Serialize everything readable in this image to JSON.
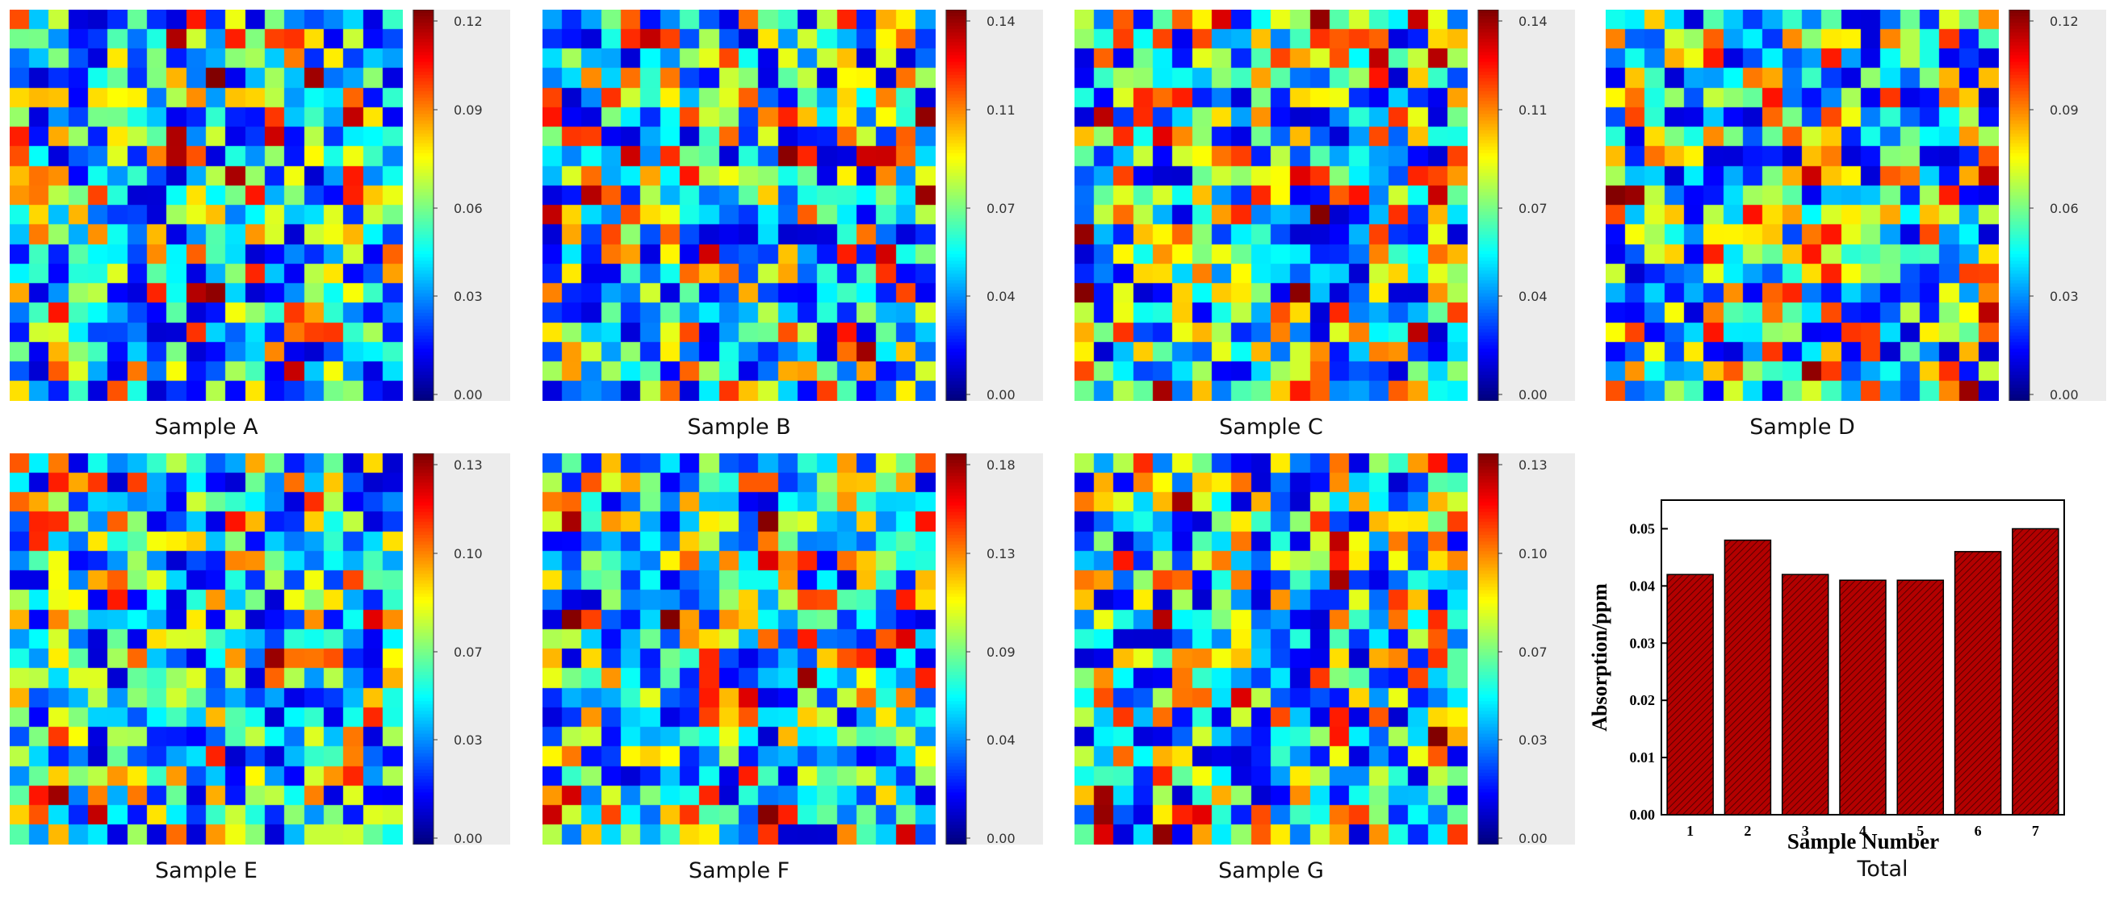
{
  "panels": [
    {
      "label": "Sample A",
      "seed": 11,
      "ticks": [
        "0.12",
        "0.09",
        "0.06",
        "0.03",
        "0.00"
      ]
    },
    {
      "label": "Sample B",
      "seed": 23,
      "ticks": [
        "0.14",
        "0.11",
        "0.07",
        "0.04",
        "0.00"
      ]
    },
    {
      "label": "Sample C",
      "seed": 37,
      "ticks": [
        "0.14",
        "0.11",
        "0.07",
        "0.04",
        "0.00"
      ]
    },
    {
      "label": "Sample D",
      "seed": 41,
      "ticks": [
        "0.12",
        "0.09",
        "0.06",
        "0.03",
        "0.00"
      ]
    },
    {
      "label": "Sample E",
      "seed": 53,
      "ticks": [
        "0.13",
        "0.10",
        "0.07",
        "0.03",
        "0.00"
      ]
    },
    {
      "label": "Sample F",
      "seed": 67,
      "ticks": [
        "0.18",
        "0.13",
        "0.09",
        "0.04",
        "0.00"
      ]
    },
    {
      "label": "Sample G",
      "seed": 79,
      "ticks": [
        "0.13",
        "0.10",
        "0.07",
        "0.03",
        "0.00"
      ]
    }
  ],
  "chart_data": [
    {
      "type": "heatmap",
      "title": "Sample A",
      "grid": [
        20,
        20
      ],
      "colormap": "jet",
      "range": [
        0.0,
        0.12
      ],
      "colorbar_ticks": [
        0.12,
        0.09,
        0.06,
        0.03,
        0.0
      ]
    },
    {
      "type": "heatmap",
      "title": "Sample B",
      "grid": [
        20,
        20
      ],
      "colormap": "jet",
      "range": [
        0.0,
        0.14
      ],
      "colorbar_ticks": [
        0.14,
        0.11,
        0.07,
        0.04,
        0.0
      ]
    },
    {
      "type": "heatmap",
      "title": "Sample C",
      "grid": [
        20,
        20
      ],
      "colormap": "jet",
      "range": [
        0.0,
        0.14
      ],
      "colorbar_ticks": [
        0.14,
        0.11,
        0.07,
        0.04,
        0.0
      ]
    },
    {
      "type": "heatmap",
      "title": "Sample D",
      "grid": [
        20,
        20
      ],
      "colormap": "jet",
      "range": [
        0.0,
        0.12
      ],
      "colorbar_ticks": [
        0.12,
        0.09,
        0.06,
        0.03,
        0.0
      ]
    },
    {
      "type": "heatmap",
      "title": "Sample E",
      "grid": [
        20,
        20
      ],
      "colormap": "jet",
      "range": [
        0.0,
        0.13
      ],
      "colorbar_ticks": [
        0.13,
        0.1,
        0.07,
        0.03,
        0.0
      ]
    },
    {
      "type": "heatmap",
      "title": "Sample F",
      "grid": [
        20,
        20
      ],
      "colormap": "jet",
      "range": [
        0.0,
        0.18
      ],
      "colorbar_ticks": [
        0.18,
        0.13,
        0.09,
        0.04,
        0.0
      ]
    },
    {
      "type": "heatmap",
      "title": "Sample G",
      "grid": [
        20,
        20
      ],
      "colormap": "jet",
      "range": [
        0.0,
        0.13
      ],
      "colorbar_ticks": [
        0.13,
        0.1,
        0.07,
        0.03,
        0.0
      ]
    },
    {
      "type": "bar",
      "title": "Total",
      "xlabel": "Sample Number",
      "ylabel": "Absorption/ppm",
      "categories": [
        "1",
        "2",
        "3",
        "4",
        "5",
        "6",
        "7"
      ],
      "values": [
        0.042,
        0.048,
        0.042,
        0.041,
        0.041,
        0.046,
        0.05
      ],
      "ylim": [
        0.0,
        0.055
      ],
      "yticks": [
        "0.00",
        "0.01",
        "0.02",
        "0.03",
        "0.04",
        "0.05"
      ],
      "bar_color": "#b30000",
      "hatch": "diagonal"
    }
  ],
  "bar_panel": {
    "label": "Total",
    "xlabel": "Sample Number",
    "ylabel": "Absorption/ppm"
  }
}
